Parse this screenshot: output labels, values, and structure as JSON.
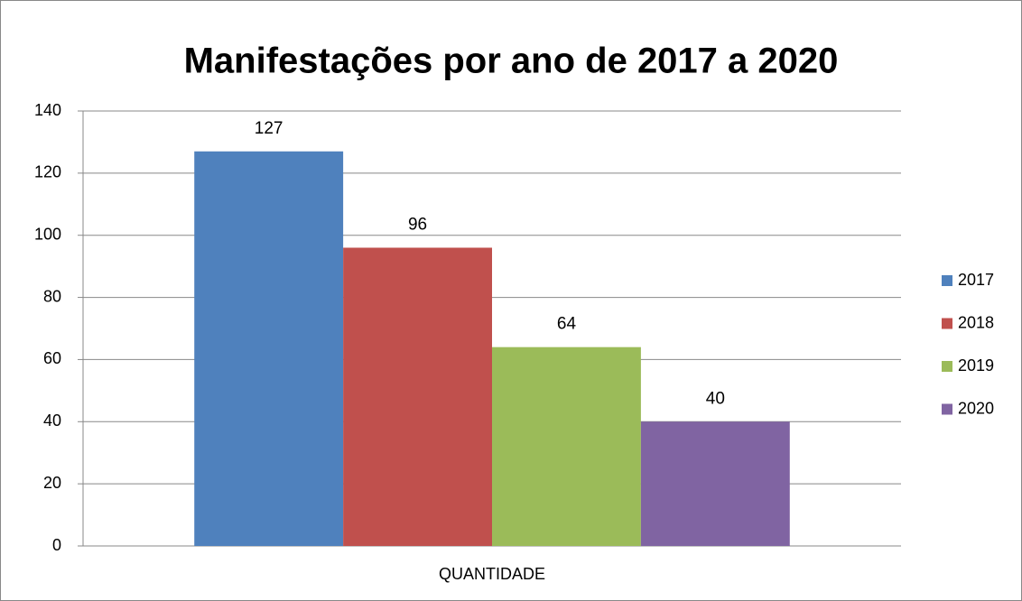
{
  "chart_data": {
    "type": "bar",
    "title": "Manifestações por ano de 2017 a 2020",
    "categories": [
      "QUANTIDADE"
    ],
    "series": [
      {
        "name": "2017",
        "color": "#4f81bd",
        "values": [
          127
        ]
      },
      {
        "name": "2018",
        "color": "#c0504d",
        "values": [
          96
        ]
      },
      {
        "name": "2019",
        "color": "#9bbb59",
        "values": [
          64
        ]
      },
      {
        "name": "2020",
        "color": "#8064a2",
        "values": [
          40
        ]
      }
    ],
    "ylim": [
      0,
      140
    ],
    "yticks": [
      0,
      20,
      40,
      60,
      80,
      100,
      120,
      140
    ],
    "grid": true,
    "legend": "right"
  }
}
